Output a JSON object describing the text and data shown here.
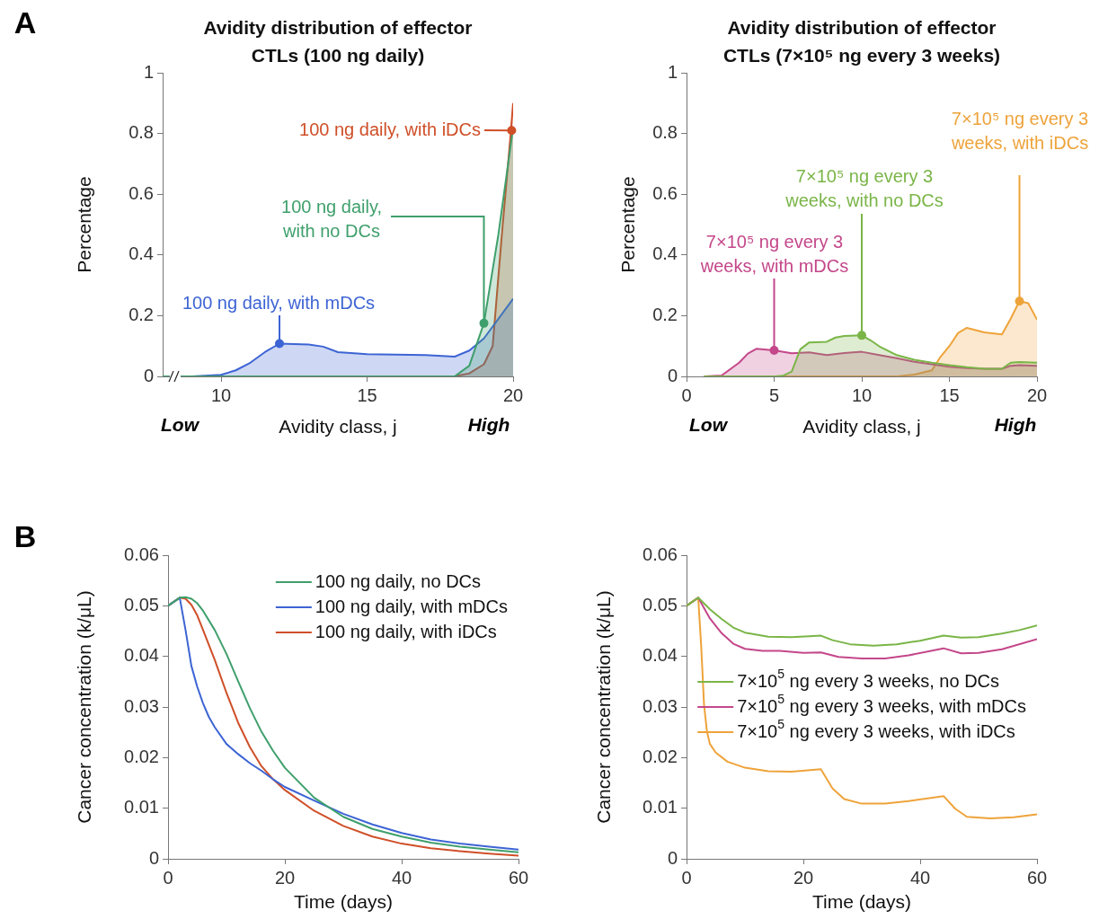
{
  "chart_data": [
    {
      "type": "area",
      "title": "Avidity distribution of effector CTLs (100 ng daily)",
      "xlabel": "Avidity class, j",
      "ylabel": "Percentage",
      "xlim": [
        8,
        20
      ],
      "xticks": [
        10,
        15,
        20
      ],
      "ylim": [
        0,
        1
      ],
      "yticks": [
        0,
        0.2,
        0.4,
        0.6,
        0.8,
        1
      ],
      "grid": false,
      "series": [
        {
          "color": "#3f9f6c",
          "x": [
            8,
            17,
            18,
            18.5,
            19,
            19.5,
            20
          ],
          "values": [
            0,
            0,
            0,
            0.035,
            0.175,
            0.47,
            0.82
          ]
        },
        {
          "color": "#3d64d4",
          "x": [
            8,
            9,
            10,
            10.5,
            11,
            11.5,
            12,
            13,
            13.5,
            14,
            15,
            16,
            17,
            18,
            18.5,
            19,
            19.5,
            20
          ],
          "values": [
            0,
            0,
            0.005,
            0.02,
            0.045,
            0.08,
            0.108,
            0.105,
            0.098,
            0.08,
            0.073,
            0.072,
            0.07,
            0.065,
            0.085,
            0.125,
            0.19,
            0.256
          ]
        },
        {
          "color": "#cf4f28",
          "x": [
            8,
            17,
            18,
            18.5,
            19,
            19.3,
            19.6,
            19.9,
            20
          ],
          "values": [
            0,
            0,
            0,
            0.01,
            0.04,
            0.1,
            0.45,
            0.78,
            0.9
          ]
        }
      ],
      "annotations": [
        {
          "text": "100 ng daily, with no DCs",
          "x": 19,
          "y": 0.175
        },
        {
          "text": "100 ng daily, with mDCs",
          "x": 12,
          "y": 0.108
        },
        {
          "text": "100 ng daily, with iDCs",
          "x": 19.95,
          "y": 0.81
        },
        "A",
        "Low",
        "High"
      ]
    },
    {
      "type": "area",
      "title": "Avidity distribution of effector CTLs (7×10⁵ ng every 3 weeks)",
      "xlabel": "Avidity class, j",
      "ylabel": "Percentage",
      "xlim": [
        0,
        20
      ],
      "xticks": [
        0,
        5,
        10,
        15,
        20
      ],
      "ylim": [
        0,
        1
      ],
      "yticks": [
        0,
        0.2,
        0.4,
        0.6,
        0.8,
        1
      ],
      "grid": false,
      "series": [
        {
          "color": "#7ab547",
          "x": [
            1,
            5,
            5.5,
            6,
            6.5,
            7,
            8,
            8.5,
            9,
            10,
            10.5,
            11,
            12,
            13,
            14,
            15,
            16,
            17,
            18,
            18.5,
            19,
            20
          ],
          "values": [
            0,
            0,
            0.002,
            0.016,
            0.09,
            0.112,
            0.114,
            0.128,
            0.133,
            0.135,
            0.119,
            0.099,
            0.07,
            0.055,
            0.045,
            0.037,
            0.03,
            0.025,
            0.025,
            0.045,
            0.047,
            0.045
          ]
        },
        {
          "color": "#c4478a",
          "x": [
            1,
            2,
            3,
            3.5,
            4,
            5,
            6,
            7,
            8,
            9,
            10,
            11,
            12,
            13,
            14,
            15,
            16,
            17,
            18,
            18.5,
            19,
            20
          ],
          "values": [
            0,
            0.003,
            0.045,
            0.075,
            0.091,
            0.086,
            0.076,
            0.079,
            0.07,
            0.077,
            0.081,
            0.07,
            0.06,
            0.048,
            0.04,
            0.032,
            0.027,
            0.025,
            0.025,
            0.035,
            0.037,
            0.035
          ]
        },
        {
          "color": "#eea33a",
          "x": [
            1,
            12,
            13,
            14,
            14.5,
            15,
            15.5,
            16,
            17,
            18,
            18.5,
            19,
            19.5,
            20
          ],
          "values": [
            0,
            0,
            0.006,
            0.02,
            0.065,
            0.1,
            0.143,
            0.16,
            0.145,
            0.138,
            0.19,
            0.248,
            0.241,
            0.187
          ]
        }
      ],
      "annotations": [
        {
          "text": "7×10⁵ ng every 3 weeks, with no DCs",
          "x": 10,
          "y": 0.135
        },
        {
          "text": "7×10⁵ ng every 3 weeks, with mDCs",
          "x": 5,
          "y": 0.086
        },
        {
          "text": "7×10⁵ ng every 3 weeks, with iDCs",
          "x": 19,
          "y": 0.248
        },
        "Low",
        "High"
      ]
    },
    {
      "type": "line",
      "xlabel": "Time (days)",
      "ylabel": "Cancer concentration (k/μL)",
      "xlim": [
        0,
        60
      ],
      "xticks": [
        0,
        20,
        40,
        60
      ],
      "ylim": [
        0,
        0.06
      ],
      "yticks": [
        0,
        0.01,
        0.02,
        0.03,
        0.04,
        0.05,
        0.06
      ],
      "grid": false,
      "legend": "top right",
      "series": [
        {
          "name": "100 ng daily, no DCs",
          "color": "#3f9f6c",
          "x": [
            0,
            1,
            2,
            3,
            4,
            5,
            6,
            8,
            10,
            12,
            14,
            16,
            18,
            20,
            25,
            30,
            35,
            40,
            45,
            50,
            55,
            60
          ],
          "values": [
            0.05,
            0.0508,
            0.0516,
            0.0517,
            0.0514,
            0.0505,
            0.049,
            0.0452,
            0.0405,
            0.0351,
            0.0298,
            0.0251,
            0.0213,
            0.018,
            0.0121,
            0.0083,
            0.0059,
            0.0044,
            0.0032,
            0.0024,
            0.0018,
            0.0013
          ]
        },
        {
          "name": "100 ng daily, with mDCs",
          "color": "#3d64d4",
          "x": [
            0,
            2,
            3,
            4,
            5,
            6,
            7,
            8,
            10,
            12,
            14,
            16,
            18,
            20,
            25,
            30,
            35,
            40,
            45,
            50,
            55,
            60
          ],
          "values": [
            0.05,
            0.0516,
            0.0452,
            0.0381,
            0.034,
            0.0307,
            0.028,
            0.026,
            0.0227,
            0.0207,
            0.0189,
            0.0174,
            0.0157,
            0.0142,
            0.0115,
            0.0089,
            0.0068,
            0.0051,
            0.0038,
            0.003,
            0.0024,
            0.0018
          ]
        },
        {
          "name": "100 ng daily, with iDCs",
          "color": "#cf4f28",
          "x": [
            0,
            2,
            3,
            4,
            5,
            6,
            8,
            10,
            12,
            14,
            16,
            18,
            20,
            25,
            30,
            35,
            40,
            45,
            50,
            55,
            60
          ],
          "values": [
            0.05,
            0.0516,
            0.0514,
            0.0502,
            0.0481,
            0.0452,
            0.0393,
            0.0328,
            0.0269,
            0.0221,
            0.0183,
            0.0157,
            0.0136,
            0.0095,
            0.0065,
            0.0044,
            0.003,
            0.0021,
            0.0015,
            0.001,
            0.0006
          ]
        }
      ],
      "annotations": [
        "B"
      ]
    },
    {
      "type": "line",
      "xlabel": "Time (days)",
      "ylabel": "Cancer concentration (k/μL)",
      "xlim": [
        0,
        60
      ],
      "xticks": [
        0,
        20,
        40,
        60
      ],
      "ylim": [
        0,
        0.06
      ],
      "yticks": [
        0,
        0.01,
        0.02,
        0.03,
        0.04,
        0.05,
        0.06
      ],
      "grid": false,
      "legend": "right",
      "series": [
        {
          "name": "7×10$^{5}$ ng every 3 weeks, no DCs",
          "color": "#7ab547",
          "x": [
            0,
            2,
            4,
            6,
            8,
            10,
            14,
            18,
            21,
            23,
            25,
            28,
            32,
            36,
            40,
            44,
            47,
            50,
            54,
            57,
            60
          ],
          "values": [
            0.05,
            0.0516,
            0.0493,
            0.0474,
            0.0457,
            0.0447,
            0.0439,
            0.0438,
            0.044,
            0.0441,
            0.0432,
            0.0424,
            0.0421,
            0.0424,
            0.0431,
            0.0441,
            0.0437,
            0.0438,
            0.0445,
            0.0452,
            0.0461
          ]
        },
        {
          "name": "7×10$^{5}$ ng every 3 weeks, with mDCs",
          "color": "#c4478a",
          "x": [
            0,
            2,
            4,
            6,
            8,
            10,
            13,
            16,
            20,
            23,
            26,
            30,
            34,
            38,
            44,
            47,
            50,
            54,
            60
          ],
          "values": [
            0.05,
            0.0516,
            0.0475,
            0.0446,
            0.0425,
            0.0415,
            0.0411,
            0.0411,
            0.0407,
            0.0408,
            0.0399,
            0.0396,
            0.0396,
            0.0402,
            0.0416,
            0.0406,
            0.0407,
            0.0414,
            0.0434
          ]
        },
        {
          "name": "7×10$^{5}$ ng every 3 weeks, with iDCs",
          "color": "#eea33a",
          "x": [
            0,
            2,
            2.5,
            3,
            3.5,
            4,
            5,
            7,
            10,
            14,
            18,
            23,
            25,
            27,
            30,
            34,
            38,
            44,
            46,
            48,
            52,
            56,
            60
          ],
          "values": [
            0.05,
            0.0516,
            0.0422,
            0.0304,
            0.0251,
            0.0227,
            0.021,
            0.0192,
            0.018,
            0.0173,
            0.0172,
            0.0177,
            0.0139,
            0.0118,
            0.0109,
            0.0109,
            0.0114,
            0.0124,
            0.0099,
            0.0083,
            0.008,
            0.0082,
            0.0088
          ]
        }
      ]
    }
  ]
}
